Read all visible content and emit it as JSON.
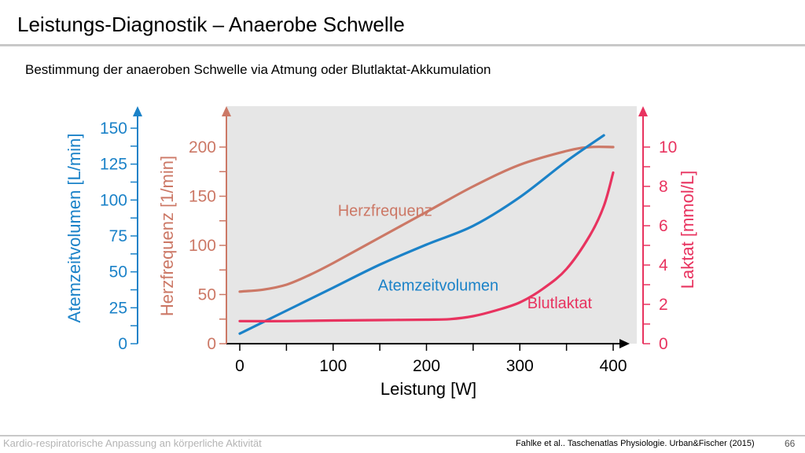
{
  "header": {
    "title": "Leistungs-Diagnostik – Anaerobe Schwelle"
  },
  "subtitle": "Bestimmung der anaeroben Schwelle via Atmung oder Blutlaktat-Akkumulation",
  "footer": {
    "left": "Kardio-respiratorische Anpassung an körperliche Aktivität",
    "reference": "Fahlke et al.. Taschenatlas Physiologie. Urban&Fischer (2015)",
    "page": "66"
  },
  "colors": {
    "herzfrequenz": "#cc7866",
    "atemzeitvolumen": "#1b82c8",
    "blutlaktat": "#e8335f",
    "plot_bg": "#e6e6e6"
  },
  "chart_data": {
    "type": "line",
    "xlabel": "Leistung [W]",
    "xlim": [
      0,
      400
    ],
    "x_ticks": [
      0,
      100,
      200,
      300,
      400
    ],
    "axes": [
      {
        "id": "vent",
        "label": "Atemzeitvolumen [L/min]",
        "lim": [
          0,
          150
        ],
        "ticks": [
          0,
          25,
          50,
          75,
          100,
          125,
          150
        ],
        "color": "#1b82c8"
      },
      {
        "id": "hr",
        "label": "Herzfrequenz [1/min]",
        "lim": [
          0,
          200
        ],
        "ticks": [
          0,
          50,
          100,
          150,
          200
        ],
        "color": "#cc7866"
      },
      {
        "id": "lac",
        "label": "Laktat [mmol/L]",
        "lim": [
          0,
          10
        ],
        "ticks": [
          0,
          2,
          4,
          6,
          8,
          10
        ],
        "color": "#e8335f"
      }
    ],
    "series": [
      {
        "name": "Herzfrequenz",
        "axis": "hr",
        "color": "#cc7866",
        "x": [
          0,
          25,
          50,
          75,
          100,
          150,
          200,
          250,
          300,
          350,
          375,
          400
        ],
        "y": [
          53,
          55,
          60,
          70,
          82,
          108,
          134,
          160,
          182,
          196,
          200,
          200
        ],
        "label_at": [
          105,
          130
        ]
      },
      {
        "name": "Atemzeitvolumen",
        "axis": "vent",
        "color": "#1b82c8",
        "x": [
          0,
          50,
          100,
          150,
          200,
          250,
          300,
          350,
          390
        ],
        "y": [
          7,
          23,
          39,
          55,
          69,
          82,
          102,
          127,
          145
        ],
        "label_at": [
          148,
          37
        ]
      },
      {
        "name": "Blutlaktat",
        "axis": "lac",
        "color": "#e8335f",
        "x": [
          0,
          50,
          100,
          150,
          200,
          225,
          250,
          275,
          300,
          325,
          350,
          375,
          390,
          400
        ],
        "y": [
          1.15,
          1.15,
          1.18,
          1.2,
          1.22,
          1.25,
          1.4,
          1.7,
          2.1,
          2.8,
          3.8,
          5.5,
          7.0,
          8.7
        ],
        "label_at": [
          308,
          1.8
        ]
      }
    ]
  }
}
